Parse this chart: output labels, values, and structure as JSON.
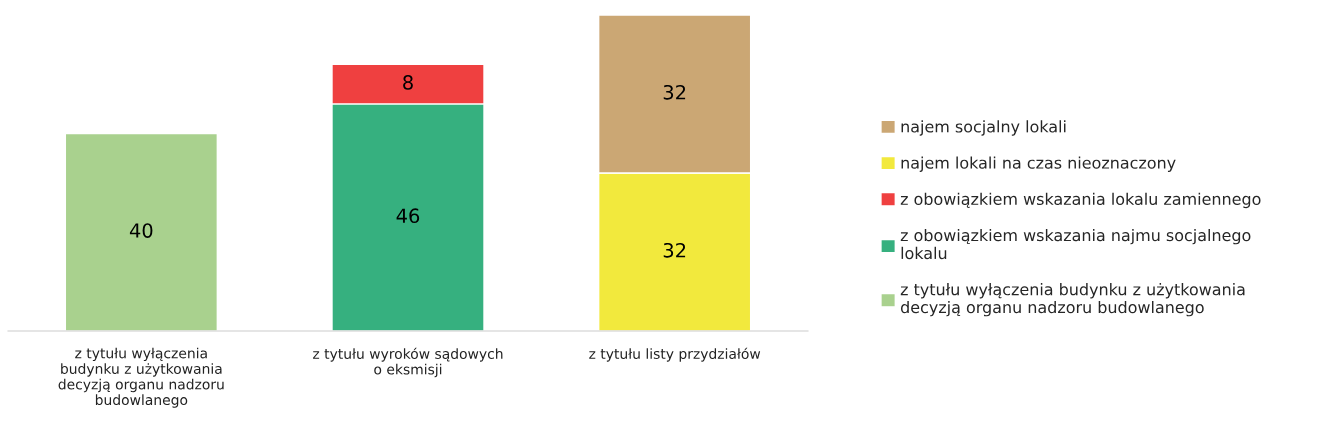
{
  "chart_data": {
    "type": "bar",
    "stacked": true,
    "data_labels": true,
    "legend": "right",
    "grid": false,
    "categories": [
      "z tytułu wyłączenia budynku z użytkowania decyzją organu nadzoru budowlanego",
      "z tytułu wyroków sądowych o eksmisji",
      "z tytułu listy przydziałów"
    ],
    "series": [
      {
        "name": "z tytułu wyłączenia budynku z użytkowania decyzją organu nadzoru budowlanego",
        "color": "#a9d18e",
        "values": [
          40,
          null,
          null
        ]
      },
      {
        "name": "z obowiązkiem wskazania najmu socjalnego lokalu",
        "color": "#36b07f",
        "values": [
          null,
          46,
          null
        ]
      },
      {
        "name": "z obowiązkiem wskazania lokalu zamiennego",
        "color": "#ef4040",
        "values": [
          null,
          8,
          null
        ]
      },
      {
        "name": "najem lokali na czas nieoznaczony",
        "color": "#f2e93d",
        "values": [
          null,
          null,
          32
        ]
      },
      {
        "name": "najem socjalny lokali",
        "color": "#cba774",
        "values": [
          null,
          null,
          32
        ]
      }
    ]
  }
}
